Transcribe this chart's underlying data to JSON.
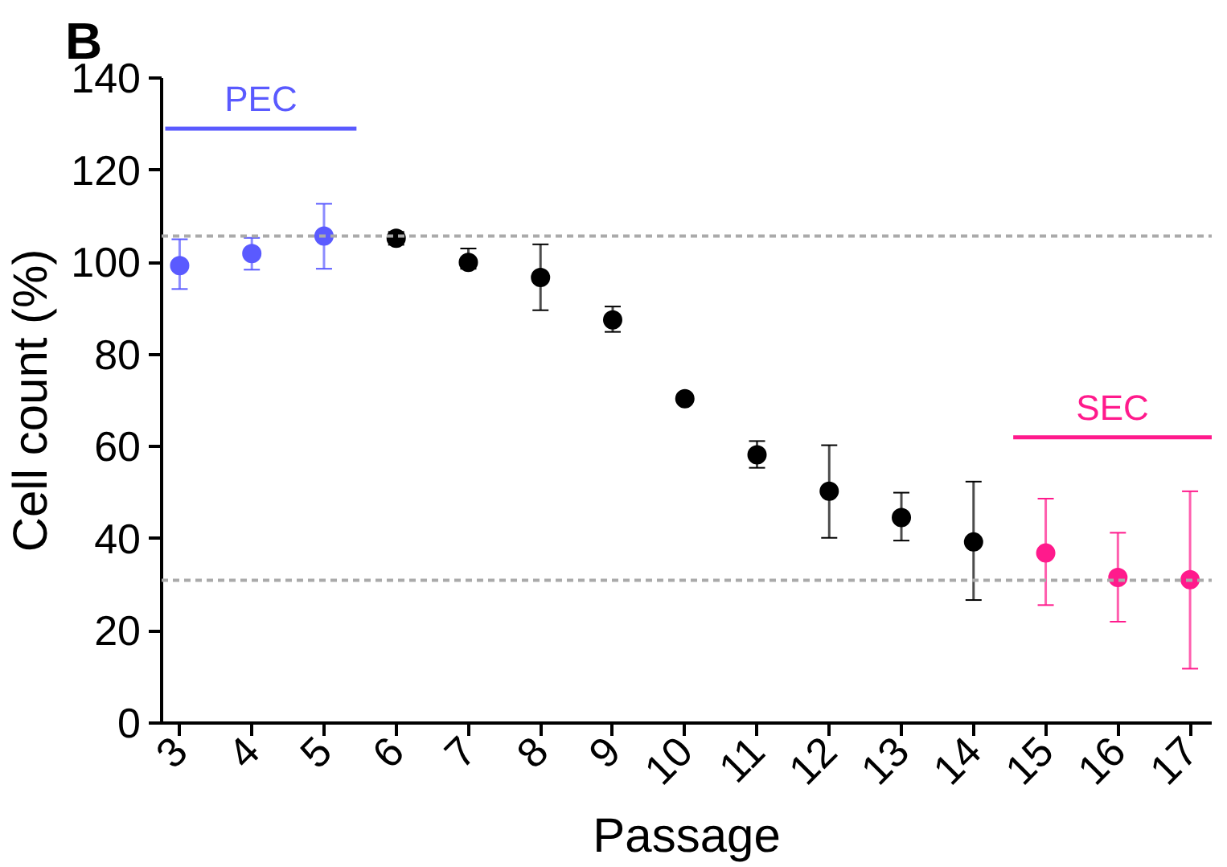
{
  "chart_data": {
    "type": "scatter",
    "title": "B",
    "xlabel": "Passage",
    "ylabel": "Cell count (%)",
    "xlim": [
      2.75,
      17.3
    ],
    "xticks": [
      3,
      4,
      5,
      6,
      7,
      8,
      9,
      10,
      11,
      12,
      13,
      14,
      15,
      16,
      17
    ],
    "ylim": [
      0,
      140
    ],
    "yticks": [
      0,
      20,
      40,
      60,
      80,
      100,
      120,
      140
    ],
    "grid": false,
    "legend": false,
    "marker": "circle",
    "series": [
      {
        "color": "#5a5aff",
        "x": [
          3,
          4,
          5
        ],
        "values": [
          99.3,
          101.9,
          105.7
        ],
        "errors": [
          [
            94.2,
            105
          ],
          [
            98.4,
            105.3
          ],
          [
            98.6,
            112.7
          ]
        ]
      },
      {
        "color": "#000000",
        "x": [
          6,
          7,
          8,
          9,
          10,
          11,
          12,
          13,
          14
        ],
        "values": [
          105.2,
          100,
          96.7,
          87.5,
          70.4,
          58.2,
          50.3,
          44.6,
          39.3
        ],
        "errors": [
          [
            103.8,
            106.6
          ],
          [
            98.6,
            103
          ],
          [
            89.6,
            103.9
          ],
          [
            84.9,
            90.4
          ],
          null,
          [
            55.4,
            61.2
          ],
          [
            40.2,
            60.3
          ],
          [
            39.6,
            50
          ],
          [
            26.7,
            52.4
          ]
        ]
      },
      {
        "type": "line",
        "name": "PEC",
        "marker": "none",
        "color": "#5a5aff",
        "x": [
          2.8,
          5.45
        ],
        "values": [
          129,
          129
        ]
      },
      {
        "type": "line",
        "name": "SEC",
        "marker": "none",
        "color": "#ff1a8c",
        "x": [
          14.55,
          17.3
        ],
        "values": [
          62,
          62
        ]
      },
      {
        "color": "#ff1a8c",
        "x": [
          15,
          16,
          17
        ],
        "values": [
          36.9,
          31.6,
          31.1
        ],
        "errors": [
          [
            25.6,
            48.7
          ],
          [
            22,
            41.3
          ],
          [
            11.8,
            50.3
          ]
        ]
      }
    ],
    "ref_lines": [
      {
        "axis": "y",
        "value": 105.7,
        "color": "#aaaaaa",
        "line_style": "dashed"
      },
      {
        "axis": "y",
        "value": 31,
        "color": "#aaaaaa",
        "line_style": "dashed"
      }
    ]
  }
}
